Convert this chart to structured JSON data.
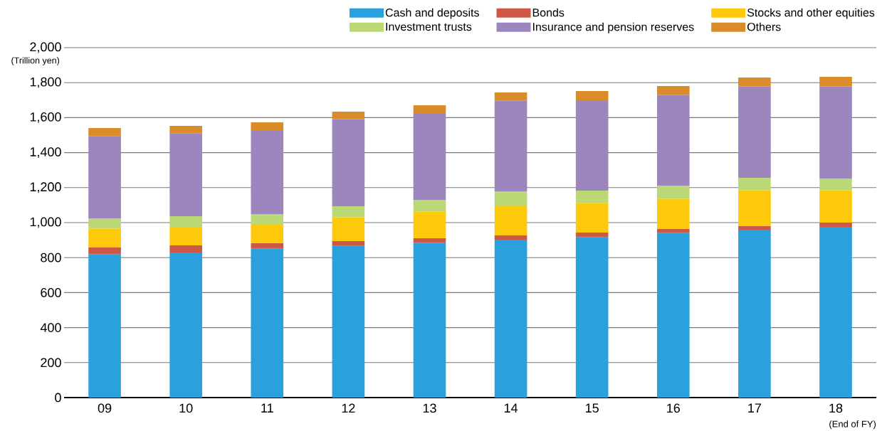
{
  "chart_data": {
    "type": "bar",
    "stacked": true,
    "categories": [
      "09",
      "10",
      "11",
      "12",
      "13",
      "14",
      "15",
      "16",
      "17",
      "18"
    ],
    "series": [
      {
        "name": "Cash and deposits",
        "color": "#2aa1dc",
        "values": [
          818,
          829,
          851,
          867,
          883,
          902,
          916,
          940,
          959,
          976
        ]
      },
      {
        "name": "Bonds",
        "color": "#cc5845",
        "values": [
          40,
          41,
          31,
          27,
          28,
          25,
          27,
          23,
          21,
          24
        ]
      },
      {
        "name": "Stocks and other equities",
        "color": "#fec80b",
        "values": [
          107,
          106,
          110,
          136,
          151,
          171,
          168,
          174,
          204,
          184
        ]
      },
      {
        "name": "Investment trusts",
        "color": "#bbd876",
        "values": [
          59,
          61,
          57,
          63,
          68,
          81,
          72,
          74,
          72,
          68
        ]
      },
      {
        "name": "Insurance and pension reserves",
        "color": "#9c86bd",
        "values": [
          469,
          472,
          479,
          498,
          496,
          517,
          516,
          519,
          522,
          526
        ]
      },
      {
        "name": "Others",
        "color": "#d98c29",
        "values": [
          48,
          44,
          45,
          43,
          45,
          48,
          53,
          50,
          51,
          55
        ]
      }
    ],
    "ylabel": "(Trillion yen)",
    "xlabel": "(End of FY)",
    "ylim": [
      0,
      2000
    ],
    "yticks": [
      0,
      200,
      400,
      600,
      800,
      {
        "value": 1000,
        "label": "1,000"
      },
      {
        "value": 1200,
        "label": "1,200"
      },
      {
        "value": 1400,
        "label": "1,400"
      },
      {
        "value": 1600,
        "label": "1,600"
      },
      {
        "value": 1800,
        "label": "1,800"
      },
      {
        "value": 2000,
        "label": "2,000"
      }
    ],
    "grid": "y",
    "legend": "top right"
  }
}
